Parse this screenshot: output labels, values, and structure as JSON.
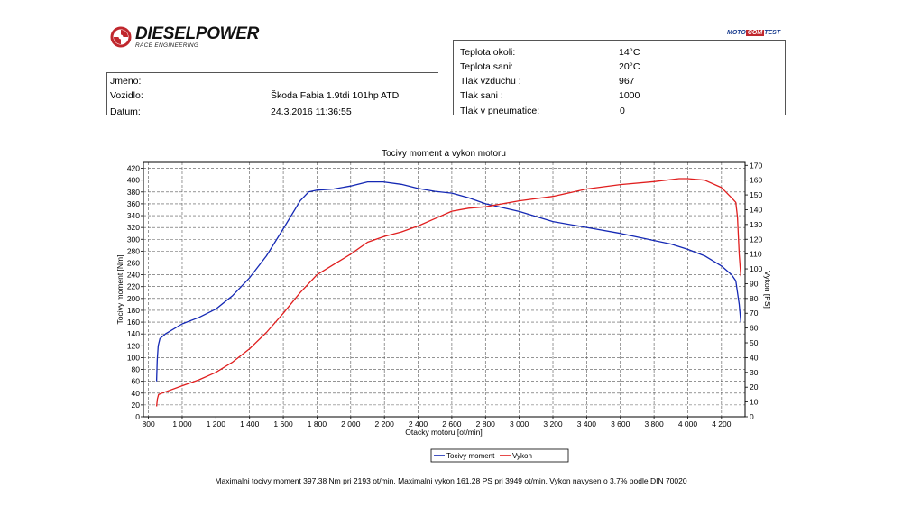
{
  "header": {
    "logo_name": "DIESELPOWER",
    "logo_tagline": "RACE ENGINEERING",
    "badge": {
      "part1": "MOTO",
      "part2": "COM",
      "part3": "TEST"
    }
  },
  "info": {
    "jmeno_label": "Jmeno:",
    "jmeno_value": "",
    "vozidlo_label": "Vozidlo:",
    "vozidlo_value": "Škoda Fabia 1.9tdi 101hp ATD",
    "datum_label": "Datum:",
    "datum_value": "24.3.2016 11:36:55"
  },
  "conditions": [
    {
      "label": "Teplota okoli:",
      "value": "14°C"
    },
    {
      "label": "Teplota sani:",
      "value": "20°C"
    },
    {
      "label": "Tlak vzduchu :",
      "value": "967"
    },
    {
      "label": "Tlak sani :",
      "value": "1000"
    },
    {
      "label": "Tlak v pneumatice:",
      "value": "0"
    }
  ],
  "footer_text": "Maximalni tocivy moment 397,38 Nm pri 2193 ot/min,  Maximalni vykon 161,28 PS pri 3949 ot/min,  Vykon navysen o 3,7% podle DIN 70020",
  "chart_data": {
    "type": "line",
    "title": "Tocivy moment a vykon motoru",
    "xlabel": "Otacky motoru [ot/min]",
    "ylabel_left": "Tocivy moment [Nm]",
    "ylabel_right": "Vykon [PS]",
    "xlim": [
      770,
      4340
    ],
    "ylim_left": [
      0,
      430
    ],
    "ylim_right": [
      0,
      172
    ],
    "x_ticks": [
      800,
      1000,
      1200,
      1400,
      1600,
      1800,
      2000,
      2200,
      2400,
      2600,
      2800,
      3000,
      3200,
      3400,
      3600,
      3800,
      4000,
      4200
    ],
    "x_tick_labels": [
      "800",
      "1 000",
      "1 200",
      "1 400",
      "1 600",
      "1 800",
      "2 000",
      "2 200",
      "2 400",
      "2 600",
      "2 800",
      "3 000",
      "3 200",
      "3 400",
      "3 600",
      "3 800",
      "4 000",
      "4 200"
    ],
    "y_left_ticks": [
      0,
      20,
      40,
      60,
      80,
      100,
      120,
      140,
      160,
      180,
      200,
      220,
      240,
      260,
      280,
      300,
      320,
      340,
      360,
      380,
      400,
      420
    ],
    "y_right_ticks": [
      0,
      10,
      20,
      30,
      40,
      50,
      60,
      70,
      80,
      90,
      100,
      110,
      120,
      130,
      140,
      150,
      160,
      170
    ],
    "grid": true,
    "legend_position": "bottom-center",
    "series": [
      {
        "name": "Tocivy moment",
        "axis": "left",
        "color": "#1428b4",
        "points": [
          [
            848,
            60
          ],
          [
            852,
            95
          ],
          [
            858,
            120
          ],
          [
            868,
            132
          ],
          [
            900,
            140
          ],
          [
            1000,
            157
          ],
          [
            1100,
            168
          ],
          [
            1200,
            182
          ],
          [
            1300,
            205
          ],
          [
            1400,
            235
          ],
          [
            1500,
            272
          ],
          [
            1600,
            318
          ],
          [
            1700,
            365
          ],
          [
            1750,
            380
          ],
          [
            1800,
            383
          ],
          [
            1900,
            385
          ],
          [
            2000,
            390
          ],
          [
            2100,
            397
          ],
          [
            2193,
            397
          ],
          [
            2300,
            393
          ],
          [
            2400,
            386
          ],
          [
            2500,
            381
          ],
          [
            2600,
            378
          ],
          [
            2700,
            370
          ],
          [
            2800,
            360
          ],
          [
            3000,
            347
          ],
          [
            3200,
            330
          ],
          [
            3400,
            320
          ],
          [
            3600,
            310
          ],
          [
            3800,
            298
          ],
          [
            3900,
            292
          ],
          [
            4000,
            283
          ],
          [
            4100,
            272
          ],
          [
            4200,
            255
          ],
          [
            4260,
            240
          ],
          [
            4285,
            230
          ],
          [
            4295,
            210
          ],
          [
            4305,
            190
          ],
          [
            4315,
            160
          ]
        ]
      },
      {
        "name": "Vykon",
        "axis": "right",
        "color": "#e01e1e",
        "points": [
          [
            848,
            7
          ],
          [
            853,
            12
          ],
          [
            860,
            15
          ],
          [
            880,
            16
          ],
          [
            1000,
            21
          ],
          [
            1100,
            25
          ],
          [
            1200,
            30
          ],
          [
            1300,
            37
          ],
          [
            1400,
            46
          ],
          [
            1500,
            57
          ],
          [
            1600,
            70
          ],
          [
            1700,
            84
          ],
          [
            1800,
            96
          ],
          [
            1900,
            103
          ],
          [
            2000,
            110
          ],
          [
            2100,
            118
          ],
          [
            2200,
            122
          ],
          [
            2300,
            125
          ],
          [
            2400,
            129
          ],
          [
            2500,
            134
          ],
          [
            2600,
            139
          ],
          [
            2700,
            141
          ],
          [
            2800,
            142
          ],
          [
            3000,
            146
          ],
          [
            3200,
            149
          ],
          [
            3400,
            154
          ],
          [
            3600,
            157
          ],
          [
            3800,
            159
          ],
          [
            3949,
            161
          ],
          [
            4000,
            161
          ],
          [
            4100,
            160
          ],
          [
            4200,
            155
          ],
          [
            4260,
            148
          ],
          [
            4285,
            145
          ],
          [
            4295,
            135
          ],
          [
            4305,
            110
          ],
          [
            4315,
            95
          ]
        ]
      }
    ]
  }
}
